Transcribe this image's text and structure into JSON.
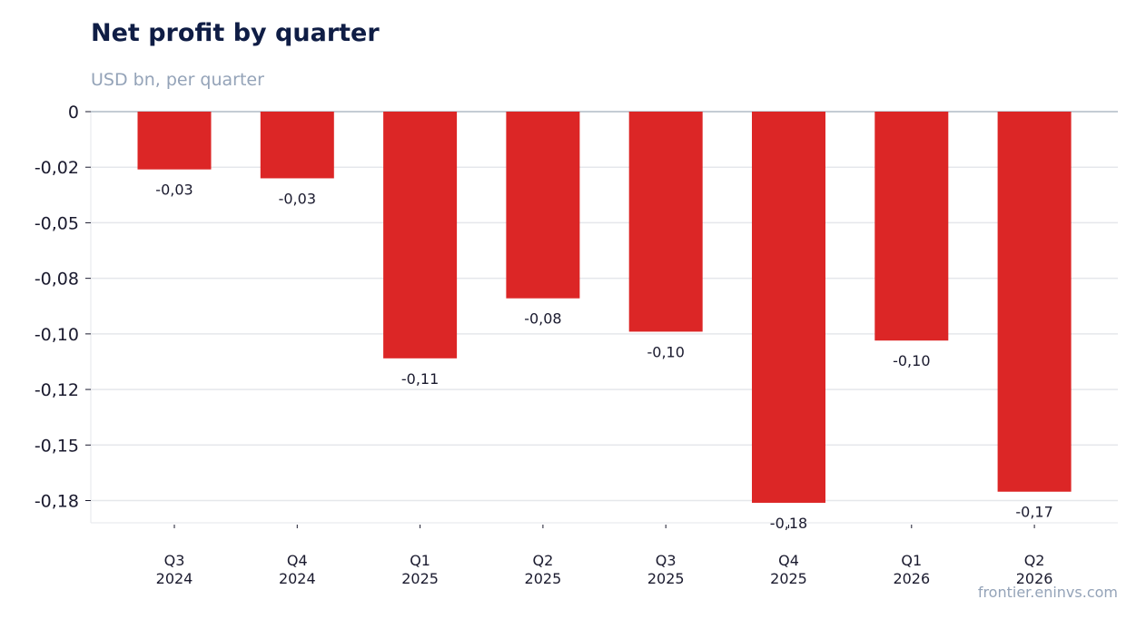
{
  "chart_data": {
    "type": "bar",
    "title": "Net profit by quarter",
    "subtitle": "USD bn, per quarter",
    "source": "frontier.eninvs.com",
    "categories": [
      "Q3\n2024",
      "Q4\n2024",
      "Q1\n2025",
      "Q2\n2025",
      "Q3\n2025",
      "Q4\n2025",
      "Q1\n2026",
      "Q2\n2026"
    ],
    "values": [
      -0.026,
      -0.03,
      -0.111,
      -0.084,
      -0.099,
      -0.176,
      -0.103,
      -0.171
    ],
    "value_labels": [
      "-0,03",
      "-0,03",
      "-0,11",
      "-0,08",
      "-0,10",
      "-0,18",
      "-0,10",
      "-0,17"
    ],
    "color": "#dc2626",
    "ylim": [
      -0.185,
      0
    ],
    "yticks": [
      0,
      {
        "value": -0.025,
        "label": "-0,02"
      },
      {
        "value": -0.05,
        "label": "-0,05"
      },
      {
        "value": -0.075,
        "label": "-0,08"
      },
      {
        "value": -0.1,
        "label": "-0,10"
      },
      {
        "value": -0.125,
        "label": "-0,12"
      },
      {
        "value": -0.15,
        "label": "-0,15"
      },
      {
        "value": -0.175,
        "label": "-0,18"
      }
    ],
    "grid": true
  }
}
